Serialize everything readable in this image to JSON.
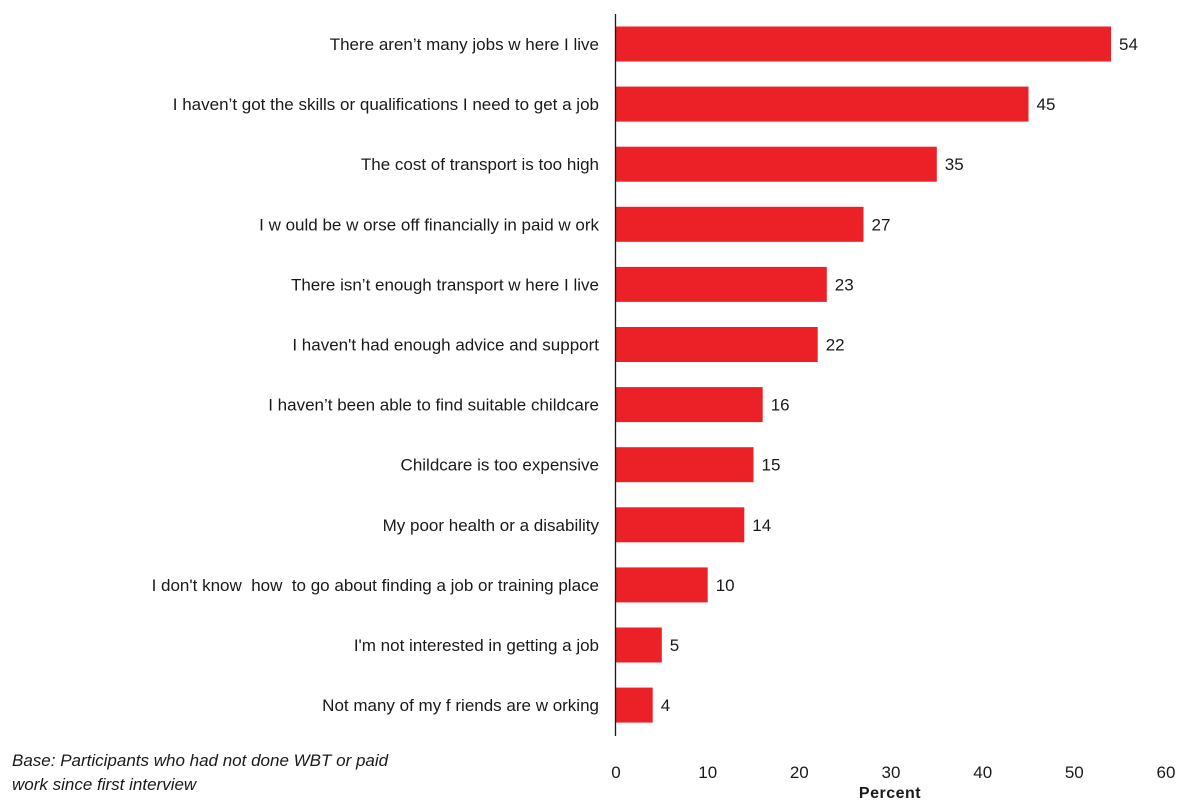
{
  "chart_data": {
    "type": "bar",
    "orientation": "horizontal",
    "categories": [
      "There aren’t many jobs w here I live",
      "I haven’t got the skills or qualifications I need to get a job",
      "The cost of transport is too high",
      "I w ould be w orse off financially in paid w ork",
      "There isn’t enough transport w here I live",
      "I haven't had enough advice and support",
      "I haven’t been able to find suitable childcare",
      "Childcare is too expensive",
      "My poor health or a disability",
      "I don't know  how  to go about finding a job or training place",
      "I'm not interested in getting a job",
      "Not many of my f riends are w orking"
    ],
    "values": [
      54,
      45,
      35,
      27,
      23,
      22,
      16,
      15,
      14,
      10,
      5,
      4
    ],
    "data_labels": [
      "54",
      "45",
      "35",
      "27",
      "23",
      "22",
      "16",
      "15",
      "14",
      "10",
      "5",
      "4"
    ],
    "xlabel": "Percent",
    "xlim": [
      0,
      60
    ],
    "xticks": [
      0,
      10,
      20,
      30,
      40,
      50,
      60
    ],
    "xtick_labels": [
      "0",
      "10",
      "20",
      "30",
      "40",
      "50",
      "60"
    ],
    "bar_color": "#ec2127",
    "grid": false,
    "legend": "none"
  },
  "footnote": {
    "line1": "Base: Participants who had not done WBT or paid",
    "line2": "work since first interview"
  }
}
